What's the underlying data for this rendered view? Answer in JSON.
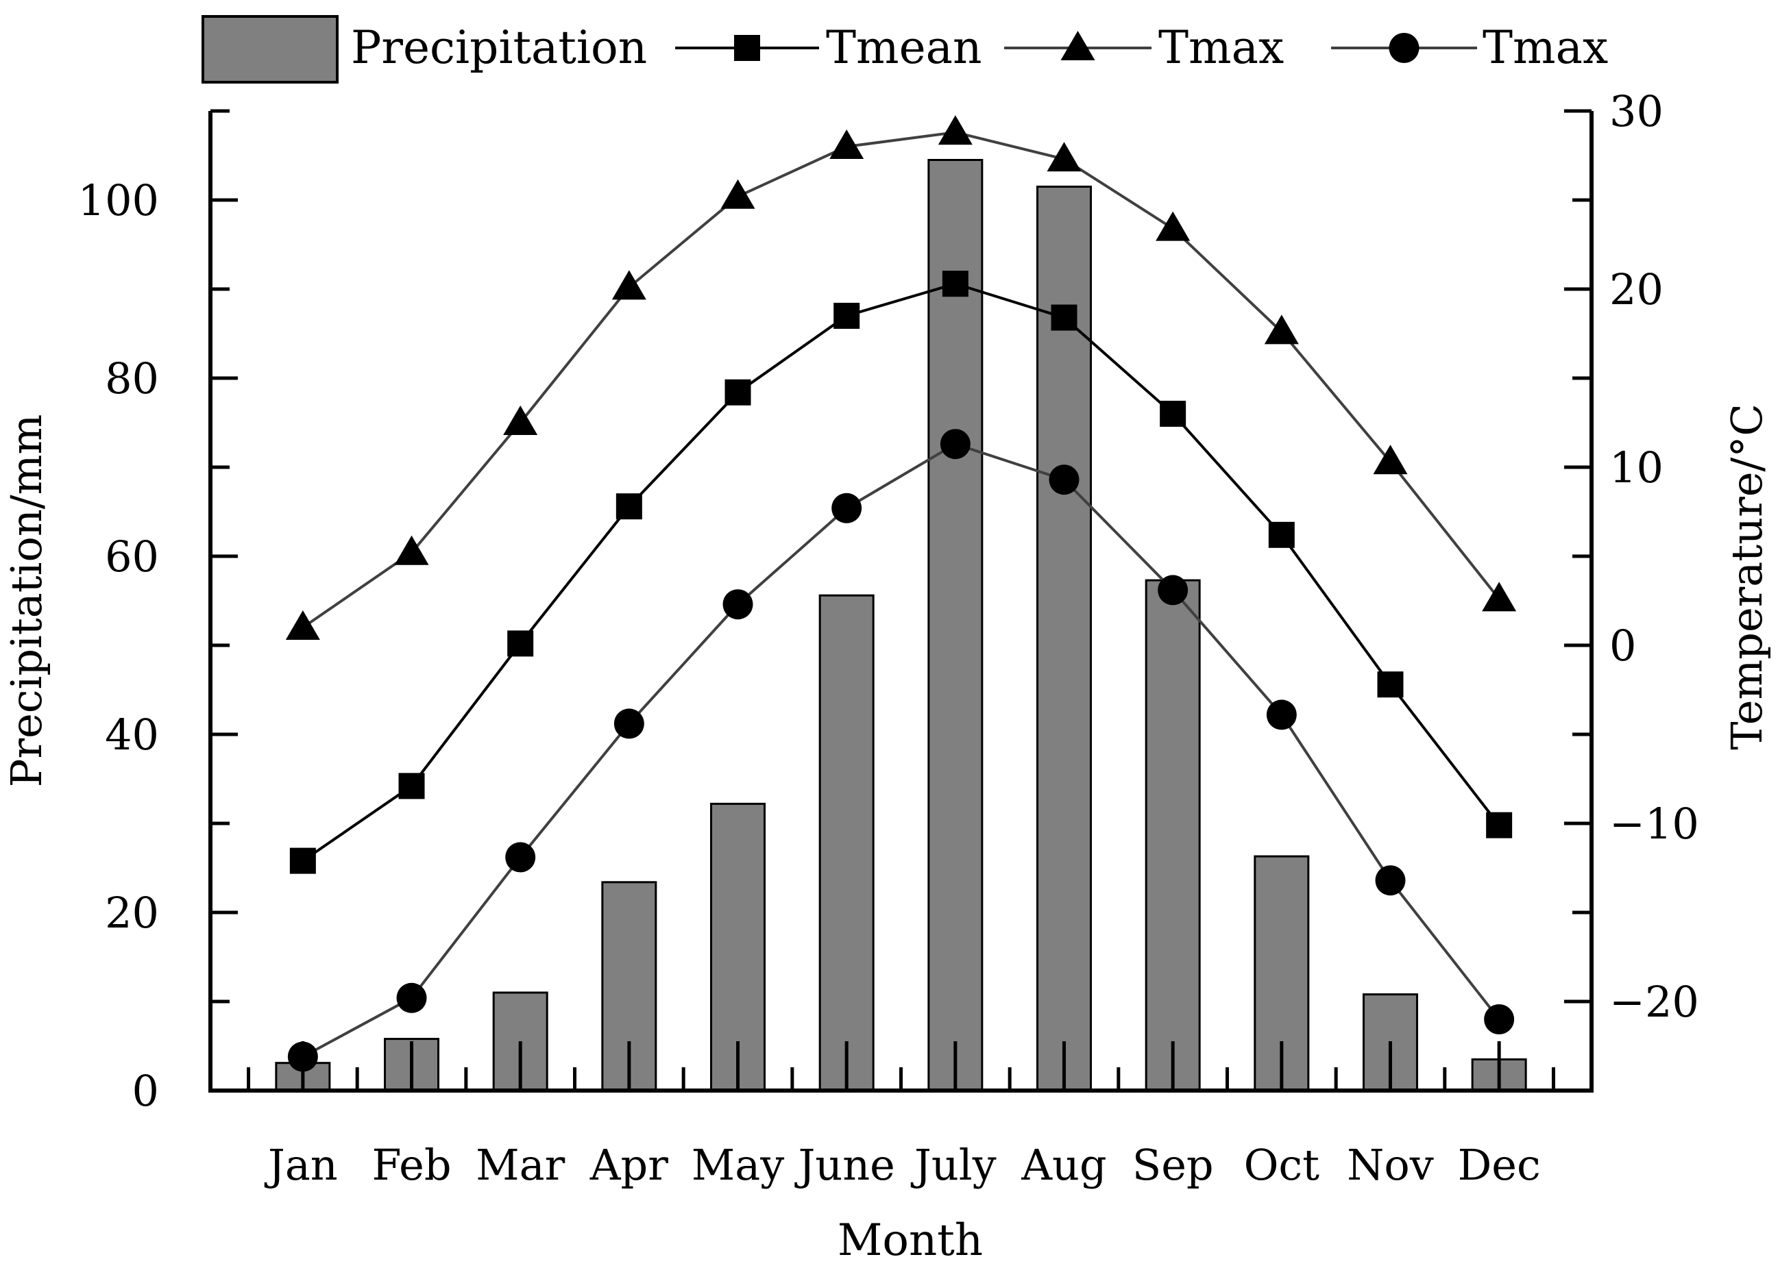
{
  "chart_data": {
    "type": "bar",
    "categories": [
      "Jan",
      "Feb",
      "Mar",
      "Apr",
      "May",
      "June",
      "July",
      "Aug",
      "Sep",
      "Oct",
      "Nov",
      "Dec"
    ],
    "xlabel": "Month",
    "ylabel": "Precipitation/mm",
    "y2label": "Temperature/°C",
    "ylim": [
      0,
      110
    ],
    "y2lim": [
      -25,
      30
    ],
    "yticks": [
      0,
      20,
      40,
      60,
      80,
      100
    ],
    "ytick_labels": [
      "0",
      "20",
      "40",
      "60",
      "80",
      "100"
    ],
    "y2ticks": [
      -20,
      -10,
      0,
      10,
      20,
      30
    ],
    "y2tick_labels": [
      "−20",
      "−10",
      "0",
      "10",
      "20",
      "30"
    ],
    "legend_position": "top",
    "bar_series": {
      "name": "Precipitation",
      "axis": "left",
      "color": "#808080",
      "values": [
        3.1,
        5.8,
        11,
        23.4,
        32.2,
        55.6,
        104.5,
        101.5,
        57.3,
        26.3,
        10.8,
        3.5
      ]
    },
    "line_series": [
      {
        "name": "Tmean",
        "marker": "square",
        "axis": "right",
        "color": "#000000",
        "values": [
          -12.1,
          -7.9,
          0.1,
          7.8,
          14.2,
          18.5,
          20.3,
          18.4,
          13,
          6.2,
          -2.2,
          -10.1
        ]
      },
      {
        "name": "Tmax",
        "marker": "triangle",
        "axis": "right",
        "color": "#404040",
        "values": [
          1,
          5.2,
          12.5,
          20.1,
          25.2,
          28,
          28.8,
          27.3,
          23.4,
          17.6,
          10.3,
          2.6
        ]
      },
      {
        "name": "Tmax",
        "marker": "circle",
        "axis": "right",
        "color": "#404040",
        "values": [
          -23.1,
          -19.8,
          -11.9,
          -4.4,
          2.3,
          7.7,
          11.3,
          9.3,
          3.1,
          -3.9,
          -13.2,
          -21
        ]
      }
    ]
  }
}
